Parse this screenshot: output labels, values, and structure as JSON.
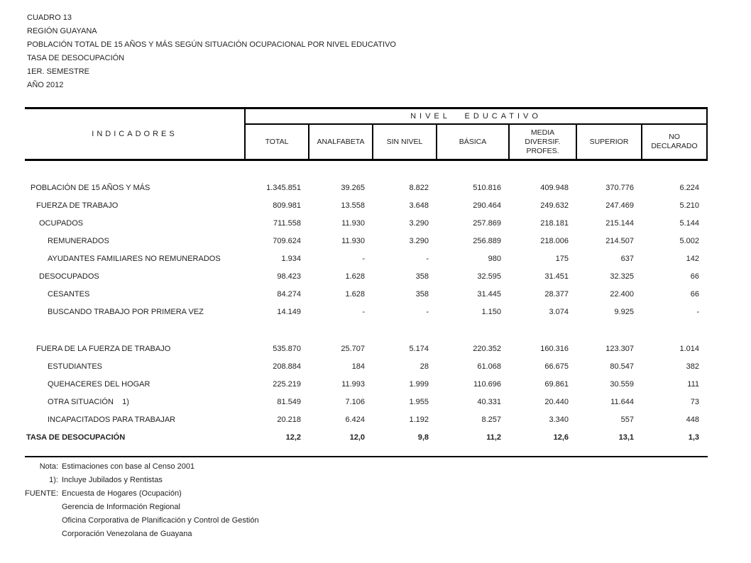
{
  "title_block": {
    "lines": [
      "CUADRO 13",
      "REGIÓN GUAYANA",
      "POBLACIÓN TOTAL DE 15 AÑOS Y MÁS SEGÚN SITUACIÓN OCUPACIONAL POR NIVEL EDUCATIVO",
      "TASA DE DESOCUPACIÓN",
      "1ER. SEMESTRE",
      "AÑO 2012"
    ]
  },
  "table": {
    "indicators_header": "INDICADORES",
    "group_header": "NIVEL EDUCATIVO",
    "columns": [
      "TOTAL",
      "ANALFABETA",
      "SIN NIVEL",
      "BÁSICA",
      "MEDIA\nDIVERSIF.\nPROFES.",
      "SUPERIOR",
      "NO\nDECLARADO"
    ],
    "rows": [
      {
        "label": "POBLACIÓN DE 15 AÑOS Y MÁS",
        "indent": 1,
        "bold": false,
        "values": [
          "1.345.851",
          "39.265",
          "8.822",
          "510.816",
          "409.948",
          "370.776",
          "6.224"
        ]
      },
      {
        "label": "FUERZA DE TRABAJO",
        "indent": 2,
        "bold": false,
        "values": [
          "809.981",
          "13.558",
          "3.648",
          "290.464",
          "249.632",
          "247.469",
          "5.210"
        ]
      },
      {
        "label": "OCUPADOS",
        "indent": 3,
        "bold": false,
        "values": [
          "711.558",
          "11.930",
          "3.290",
          "257.869",
          "218.181",
          "215.144",
          "5.144"
        ]
      },
      {
        "label": "REMUNERADOS",
        "indent": 4,
        "bold": false,
        "values": [
          "709.624",
          "11.930",
          "3.290",
          "256.889",
          "218.006",
          "214.507",
          "5.002"
        ]
      },
      {
        "label": "AYUDANTES FAMILIARES NO REMUNERADOS",
        "indent": 4,
        "bold": false,
        "values": [
          "1.934",
          "-",
          "-",
          "980",
          "175",
          "637",
          "142"
        ]
      },
      {
        "label": "DESOCUPADOS",
        "indent": 3,
        "bold": false,
        "values": [
          "98.423",
          "1.628",
          "358",
          "32.595",
          "31.451",
          "32.325",
          "66"
        ]
      },
      {
        "label": "CESANTES",
        "indent": 4,
        "bold": false,
        "values": [
          "84.274",
          "1.628",
          "358",
          "31.445",
          "28.377",
          "22.400",
          "66"
        ]
      },
      {
        "label": "BUSCANDO TRABAJO POR PRIMERA VEZ",
        "indent": 4,
        "bold": false,
        "values": [
          "14.149",
          "-",
          "-",
          "1.150",
          "3.074",
          "9.925",
          "-"
        ]
      },
      {
        "spacer": true
      },
      {
        "label": "FUERA DE LA FUERZA DE TRABAJO",
        "indent": 2,
        "bold": false,
        "values": [
          "535.870",
          "25.707",
          "5.174",
          "220.352",
          "160.316",
          "123.307",
          "1.014"
        ]
      },
      {
        "label": "ESTUDIANTES",
        "indent": 4,
        "bold": false,
        "values": [
          "208.884",
          "184",
          "28",
          "61.068",
          "66.675",
          "80.547",
          "382"
        ]
      },
      {
        "label": "QUEHACERES DEL HOGAR",
        "indent": 4,
        "bold": false,
        "values": [
          "225.219",
          "11.993",
          "1.999",
          "110.696",
          "69.861",
          "30.559",
          "111"
        ]
      },
      {
        "label": "OTRA SITUACIÓN    1)",
        "indent": 4,
        "bold": false,
        "values": [
          "81.549",
          "7.106",
          "1.955",
          "40.331",
          "20.440",
          "11.644",
          "73"
        ]
      },
      {
        "label": "INCAPACITADOS PARA TRABAJAR",
        "indent": 4,
        "bold": false,
        "values": [
          "20.218",
          "6.424",
          "1.192",
          "8.257",
          "3.340",
          "557",
          "448"
        ]
      },
      {
        "label": "TASA DE DESOCUPACIÓN",
        "indent": 0,
        "bold": true,
        "values": [
          "12,2",
          "12,0",
          "9,8",
          "11,2",
          "12,6",
          "13,1",
          "1,3"
        ]
      }
    ]
  },
  "notes": [
    {
      "label": "Nota:",
      "text": "Estimaciones con base al Censo 2001"
    },
    {
      "label": "1):",
      "text": "Incluye Jubilados y Rentistas"
    },
    {
      "label": "FUENTE:",
      "text": "Encuesta de Hogares (Ocupación)"
    },
    {
      "label": "",
      "text": "Gerencia de Información Regional"
    },
    {
      "label": "",
      "text": "Oficina Corporativa de Planificación y Control de Gestión"
    },
    {
      "label": "",
      "text": "Corporación Venezolana de Guayana"
    }
  ],
  "colors": {
    "background": "#ffffff",
    "text": "#222222",
    "border": "#000000"
  }
}
